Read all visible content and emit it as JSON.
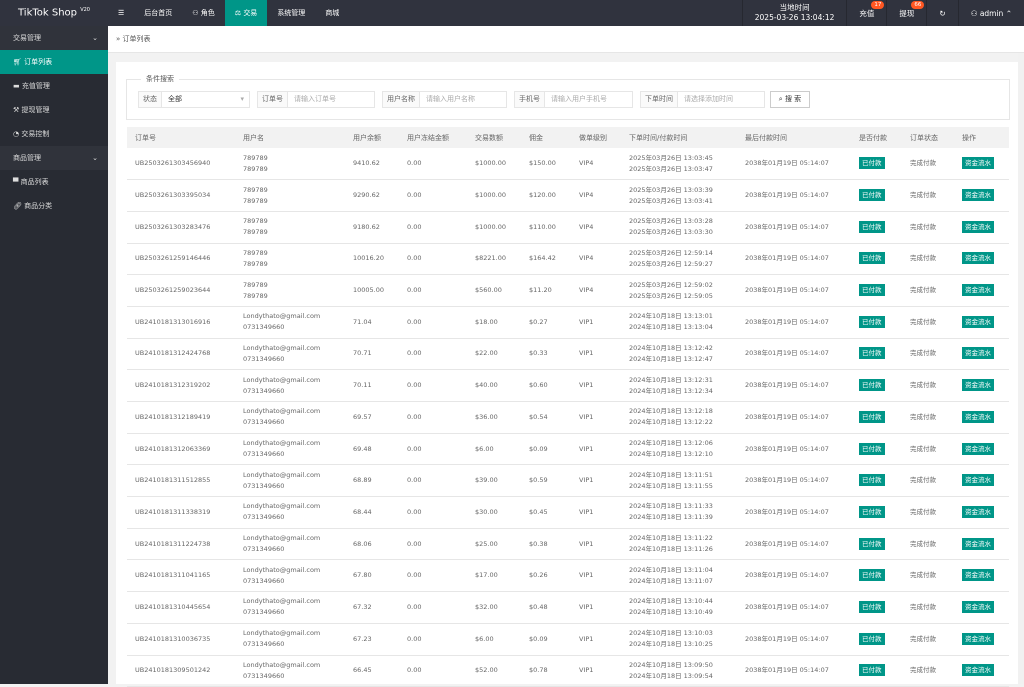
{
  "header": {
    "logo": "TikTok Shop",
    "version": "V20",
    "nav": [
      {
        "label": "☰"
      },
      {
        "label": "后台首页"
      },
      {
        "label": "角色"
      },
      {
        "label": "交易"
      },
      {
        "label": "系统管理"
      },
      {
        "label": "商城"
      }
    ],
    "clock_label": "当地时间",
    "clock": "2025-03-26 13:04:12",
    "recharge": "充值",
    "recharge_count": "17",
    "withdraw": "提现",
    "withdraw_count": "66",
    "user": "admin"
  },
  "sidebar": {
    "groups": [
      {
        "label": "交易管理",
        "items": [
          "订单列表",
          "充值管理",
          "提现管理",
          "交易控制"
        ]
      },
      {
        "label": "商品管理",
        "items": [
          "商品列表",
          "商品分类"
        ]
      }
    ]
  },
  "breadcrumb": "订单列表",
  "search": {
    "legend": "条件搜索",
    "status_label": "状态",
    "status_value": "全部",
    "order_label": "订单号",
    "order_ph": "请输入订单号",
    "user_label": "用户名称",
    "user_ph": "请输入用户名称",
    "phone_label": "手机号",
    "phone_ph": "请输入用户手机号",
    "time_label": "下单时间",
    "time_ph": "请选择添加时间",
    "button": "搜 索"
  },
  "colors": {
    "accent": "#009688",
    "badge": "#ff5722"
  },
  "table": {
    "headers": [
      "订单号",
      "用户名",
      "用户余额",
      "用户冻结金额",
      "交易数额",
      "佣金",
      "做单级别",
      "下单时间/付款时间",
      "最后付款时间",
      "是否付款",
      "订单状态",
      "操作"
    ],
    "rows": [
      [
        "UB2503261303456940",
        "789789",
        "789789",
        "9410.62",
        "0.00",
        "$1000.00",
        "$150.00",
        "VIP4",
        "2025年03月26日 13:03:45",
        "2025年03月26日 13:03:47",
        "2038年01月19日 05:14:07",
        "已付款",
        "完成付款",
        "资金流水"
      ],
      [
        "UB2503261303395034",
        "789789",
        "789789",
        "9290.62",
        "0.00",
        "$1000.00",
        "$120.00",
        "VIP4",
        "2025年03月26日 13:03:39",
        "2025年03月26日 13:03:41",
        "2038年01月19日 05:14:07",
        "已付款",
        "完成付款",
        "资金流水"
      ],
      [
        "UB2503261303283476",
        "789789",
        "789789",
        "9180.62",
        "0.00",
        "$1000.00",
        "$110.00",
        "VIP4",
        "2025年03月26日 13:03:28",
        "2025年03月26日 13:03:30",
        "2038年01月19日 05:14:07",
        "已付款",
        "完成付款",
        "资金流水"
      ],
      [
        "UB2503261259146446",
        "789789",
        "789789",
        "10016.20",
        "0.00",
        "$8221.00",
        "$164.42",
        "VIP4",
        "2025年03月26日 12:59:14",
        "2025年03月26日 12:59:27",
        "2038年01月19日 05:14:07",
        "已付款",
        "完成付款",
        "资金流水"
      ],
      [
        "UB2503261259023644",
        "789789",
        "789789",
        "10005.00",
        "0.00",
        "$560.00",
        "$11.20",
        "VIP4",
        "2025年03月26日 12:59:02",
        "2025年03月26日 12:59:05",
        "2038年01月19日 05:14:07",
        "已付款",
        "完成付款",
        "资金流水"
      ],
      [
        "UB2410181313016916",
        "Londythato@gmail.com",
        "0731349660",
        "71.04",
        "0.00",
        "$18.00",
        "$0.27",
        "VIP1",
        "2024年10月18日 13:13:01",
        "2024年10月18日 13:13:04",
        "2038年01月19日 05:14:07",
        "已付款",
        "完成付款",
        "资金流水"
      ],
      [
        "UB2410181312424768",
        "Londythato@gmail.com",
        "0731349660",
        "70.71",
        "0.00",
        "$22.00",
        "$0.33",
        "VIP1",
        "2024年10月18日 13:12:42",
        "2024年10月18日 13:12:47",
        "2038年01月19日 05:14:07",
        "已付款",
        "完成付款",
        "资金流水"
      ],
      [
        "UB2410181312319202",
        "Londythato@gmail.com",
        "0731349660",
        "70.11",
        "0.00",
        "$40.00",
        "$0.60",
        "VIP1",
        "2024年10月18日 13:12:31",
        "2024年10月18日 13:12:34",
        "2038年01月19日 05:14:07",
        "已付款",
        "完成付款",
        "资金流水"
      ],
      [
        "UB2410181312189419",
        "Londythato@gmail.com",
        "0731349660",
        "69.57",
        "0.00",
        "$36.00",
        "$0.54",
        "VIP1",
        "2024年10月18日 13:12:18",
        "2024年10月18日 13:12:22",
        "2038年01月19日 05:14:07",
        "已付款",
        "完成付款",
        "资金流水"
      ],
      [
        "UB2410181312063369",
        "Londythato@gmail.com",
        "0731349660",
        "69.48",
        "0.00",
        "$6.00",
        "$0.09",
        "VIP1",
        "2024年10月18日 13:12:06",
        "2024年10月18日 13:12:10",
        "2038年01月19日 05:14:07",
        "已付款",
        "完成付款",
        "资金流水"
      ],
      [
        "UB2410181311512855",
        "Londythato@gmail.com",
        "0731349660",
        "68.89",
        "0.00",
        "$39.00",
        "$0.59",
        "VIP1",
        "2024年10月18日 13:11:51",
        "2024年10月18日 13:11:55",
        "2038年01月19日 05:14:07",
        "已付款",
        "完成付款",
        "资金流水"
      ],
      [
        "UB2410181311338319",
        "Londythato@gmail.com",
        "0731349660",
        "68.44",
        "0.00",
        "$30.00",
        "$0.45",
        "VIP1",
        "2024年10月18日 13:11:33",
        "2024年10月18日 13:11:39",
        "2038年01月19日 05:14:07",
        "已付款",
        "完成付款",
        "资金流水"
      ],
      [
        "UB2410181311224738",
        "Londythato@gmail.com",
        "0731349660",
        "68.06",
        "0.00",
        "$25.00",
        "$0.38",
        "VIP1",
        "2024年10月18日 13:11:22",
        "2024年10月18日 13:11:26",
        "2038年01月19日 05:14:07",
        "已付款",
        "完成付款",
        "资金流水"
      ],
      [
        "UB2410181311041165",
        "Londythato@gmail.com",
        "0731349660",
        "67.80",
        "0.00",
        "$17.00",
        "$0.26",
        "VIP1",
        "2024年10月18日 13:11:04",
        "2024年10月18日 13:11:07",
        "2038年01月19日 05:14:07",
        "已付款",
        "完成付款",
        "资金流水"
      ],
      [
        "UB2410181310445654",
        "Londythato@gmail.com",
        "0731349660",
        "67.32",
        "0.00",
        "$32.00",
        "$0.48",
        "VIP1",
        "2024年10月18日 13:10:44",
        "2024年10月18日 13:10:49",
        "2038年01月19日 05:14:07",
        "已付款",
        "完成付款",
        "资金流水"
      ],
      [
        "UB2410181310036735",
        "Londythato@gmail.com",
        "0731349660",
        "67.23",
        "0.00",
        "$6.00",
        "$0.09",
        "VIP1",
        "2024年10月18日 13:10:03",
        "2024年10月18日 13:10:25",
        "2038年01月19日 05:14:07",
        "已付款",
        "完成付款",
        "资金流水"
      ],
      [
        "UB2410181309501242",
        "Londythato@gmail.com",
        "0731349660",
        "66.45",
        "0.00",
        "$52.00",
        "$0.78",
        "VIP1",
        "2024年10月18日 13:09:50",
        "2024年10月18日 13:09:54",
        "2038年01月19日 05:14:07",
        "已付款",
        "完成付款",
        "资金流水"
      ]
    ]
  }
}
